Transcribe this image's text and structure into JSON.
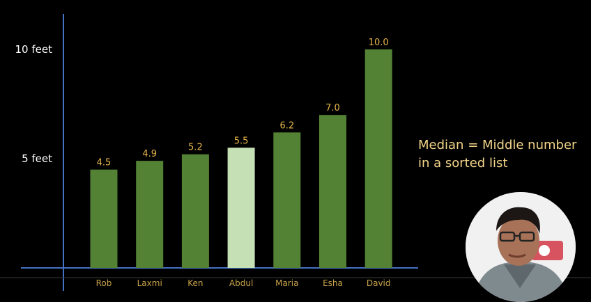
{
  "chart_data": {
    "type": "bar",
    "categories": [
      "Rob",
      "Laxmi",
      "Ken",
      "Abdul",
      "Maria",
      "Esha",
      "David"
    ],
    "values": [
      4.5,
      4.9,
      5.2,
      5.5,
      6.2,
      7.0,
      10.0
    ],
    "value_labels": [
      "4.5",
      "4.9",
      "5.2",
      "5.5",
      "6.2",
      "7.0",
      "10.0"
    ],
    "highlighted_category": "Abdul",
    "y_ticks": [
      {
        "value": 5,
        "label": "5 feet"
      },
      {
        "value": 10,
        "label": "10 feet"
      }
    ],
    "ylim": [
      0,
      11.5
    ],
    "grid": false,
    "colors": {
      "bar": "#548235",
      "bar_highlight": "#c5e0b4",
      "axis": "#4472c4",
      "value_label": "#e8b64a",
      "category_label": "#c8a24a"
    }
  },
  "annotation": {
    "line1": "Median = Middle number",
    "line2": "in a sorted list"
  },
  "presenter": {
    "icon": "presenter-webcam-icon"
  }
}
